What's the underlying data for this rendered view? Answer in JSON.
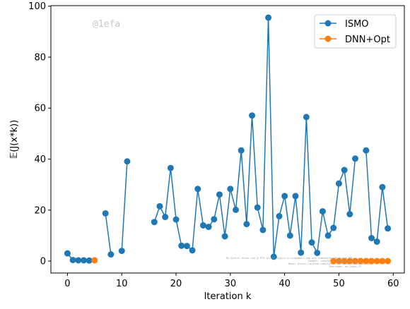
{
  "watermark": "@1efa",
  "colors": {
    "ismo": "#1f77b4",
    "dnn": "#ff7f0e",
    "axes": "#000000",
    "legend_border": "#cccccc"
  },
  "chart_data": {
    "type": "line",
    "xlabel": "Iteration k",
    "ylabel": "𝔼(J(x*k))",
    "xlim": [
      -3.05,
      62.05
    ],
    "ylim": [
      -4.7,
      100.2
    ],
    "xticks": [
      0,
      10,
      20,
      30,
      40,
      50,
      60
    ],
    "yticks": [
      0,
      20,
      40,
      60,
      80,
      100
    ],
    "grid": false,
    "legend_position": "top-right",
    "series": [
      {
        "name": "ISMO",
        "color": "#1f77b4",
        "points": [
          [
            0,
            3.0
          ],
          [
            1,
            0.4
          ],
          [
            2,
            0.3
          ],
          [
            3,
            0.3
          ],
          [
            4,
            0.2
          ],
          [
            7,
            18.7
          ],
          [
            8,
            2.6
          ],
          [
            10,
            4.0
          ],
          [
            11,
            39.1
          ],
          [
            16,
            15.3
          ],
          [
            17,
            21.5
          ],
          [
            18,
            17.3
          ],
          [
            19,
            36.5
          ],
          [
            20,
            16.3
          ],
          [
            21,
            6.0
          ],
          [
            22,
            5.9
          ],
          [
            23,
            4.2
          ],
          [
            24,
            28.3
          ],
          [
            25,
            14.0
          ],
          [
            26,
            13.4
          ],
          [
            27,
            16.4
          ],
          [
            28,
            26.1
          ],
          [
            29,
            9.7
          ],
          [
            30,
            28.3
          ],
          [
            31,
            20.1
          ],
          [
            32,
            43.4
          ],
          [
            33,
            14.5
          ],
          [
            34,
            57.1
          ],
          [
            35,
            21.0
          ],
          [
            36,
            12.2
          ],
          [
            37,
            95.5
          ],
          [
            38,
            1.7
          ],
          [
            39,
            17.6
          ],
          [
            40,
            25.5
          ],
          [
            41,
            10.0
          ],
          [
            42,
            25.5
          ],
          [
            43,
            3.3
          ],
          [
            44,
            56.5
          ],
          [
            45,
            7.3
          ],
          [
            46,
            3.2
          ],
          [
            47,
            19.5
          ],
          [
            48,
            10.0
          ],
          [
            49,
            13.0
          ],
          [
            50,
            30.4
          ],
          [
            51,
            35.7
          ],
          [
            52,
            18.4
          ],
          [
            53,
            40.2
          ],
          [
            54,
            null
          ],
          [
            55,
            43.4
          ],
          [
            56,
            9.0
          ],
          [
            57,
            7.6
          ],
          [
            58,
            29.0
          ],
          [
            59,
            12.8
          ]
        ]
      },
      {
        "name": "DNN+Opt",
        "color": "#ff7f0e",
        "points": [
          [
            5,
            0.3
          ],
          [
            49,
            0.0
          ],
          [
            50,
            0.0
          ],
          [
            51,
            0.0
          ],
          [
            52,
            0.0
          ],
          [
            53,
            0.0
          ],
          [
            54,
            0.0
          ],
          [
            55,
            0.0
          ],
          [
            56,
            0.0
          ],
          [
            57,
            0.0
          ],
          [
            58,
            0.0
          ],
          [
            59,
            0.0
          ]
        ]
      }
    ]
  }
}
